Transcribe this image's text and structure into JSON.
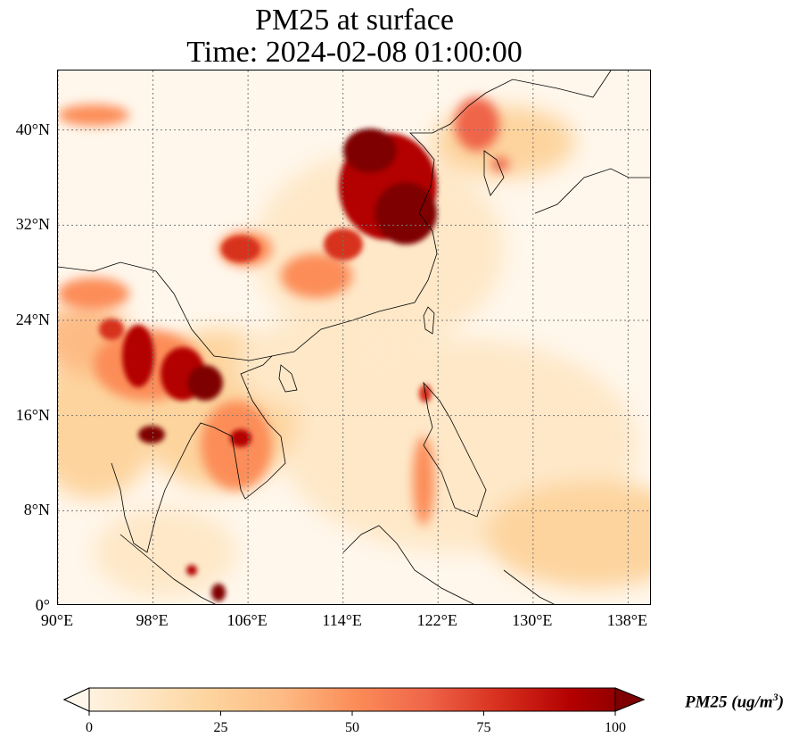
{
  "title": {
    "line1": "PM25 at surface",
    "line2": "Time: 2024-02-08 01:00:00"
  },
  "map": {
    "projection": "PlateCarree",
    "lon_range": [
      90,
      140
    ],
    "lat_range": [
      0,
      45
    ],
    "gridlines": "dotted",
    "lat_ticks": [
      "0°",
      "8°N",
      "16°N",
      "24°N",
      "32°N",
      "40°N"
    ],
    "lat_values": [
      0,
      8,
      16,
      24,
      32,
      40
    ],
    "lon_ticks": [
      "90°E",
      "98°E",
      "106°E",
      "114°E",
      "122°E",
      "130°E",
      "138°E"
    ],
    "lon_values": [
      90,
      98,
      106,
      114,
      122,
      130,
      138
    ],
    "colormap": "OrRd"
  },
  "colorbar": {
    "label_main": "PM25 (ug/m",
    "label_sup": "3",
    "label_end": ")",
    "ticks": [
      "0",
      "25",
      "50",
      "75",
      "100"
    ],
    "tick_values": [
      0,
      25,
      50,
      75,
      100
    ],
    "range": [
      0,
      100
    ],
    "extend": "both",
    "colors": [
      "#fff7ec",
      "#fee8c8",
      "#fdd49e",
      "#fdbb84",
      "#fc8d59",
      "#ef6548",
      "#d7301f",
      "#b30000",
      "#7f0000"
    ]
  }
}
